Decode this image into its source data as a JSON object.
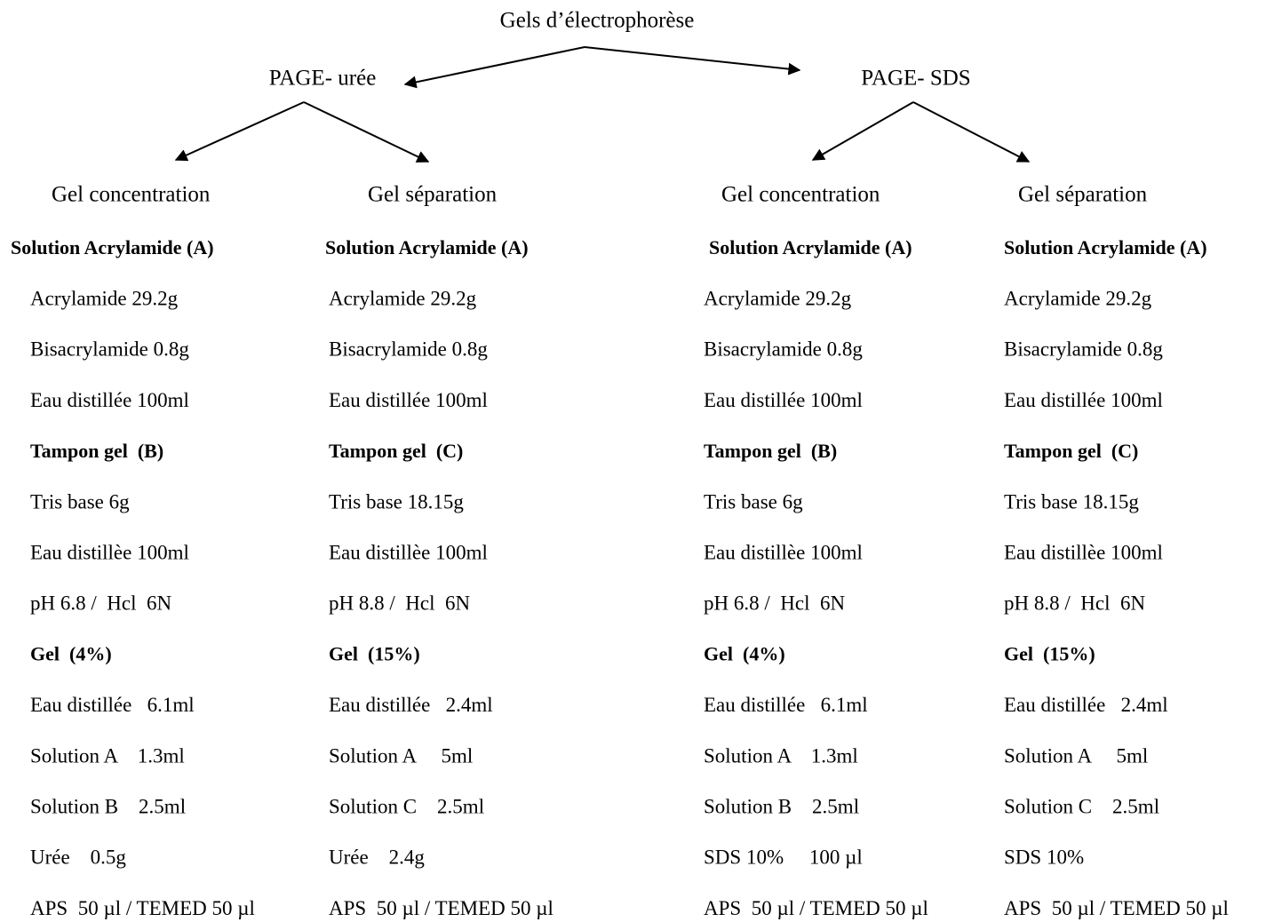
{
  "title": "Gels d’électrophorèse",
  "branches": [
    {
      "label": "PAGE- urée",
      "columns": [
        {
          "header": "Gel concentration",
          "items": [
            {
              "text": "Solution Acrylamide (A)",
              "bold": true
            },
            {
              "text": "Acrylamide 29.2g",
              "bold": false
            },
            {
              "text": "Bisacrylamide 0.8g",
              "bold": false
            },
            {
              "text": "Eau distillée 100ml",
              "bold": false
            },
            {
              "text": "Tampon gel  (B)",
              "bold": true
            },
            {
              "text": "Tris base 6g",
              "bold": false
            },
            {
              "text": "Eau distillèe 100ml",
              "bold": false
            },
            {
              "text": "pH 6.8 /  Hcl  6N",
              "bold": false
            },
            {
              "text": "Gel  (4%)",
              "bold": true
            },
            {
              "text": "Eau distillée   6.1ml",
              "bold": false
            },
            {
              "text": "Solution A    1.3ml",
              "bold": false
            },
            {
              "text": "Solution B    2.5ml",
              "bold": false
            },
            {
              "text": "Urée    0.5g",
              "bold": false
            },
            {
              "text": "APS  50 µl / TEMED 50 µl",
              "bold": false
            }
          ]
        },
        {
          "header": "Gel séparation",
          "items": [
            {
              "text": "Solution Acrylamide (A)",
              "bold": true
            },
            {
              "text": "Acrylamide 29.2g",
              "bold": false
            },
            {
              "text": "Bisacrylamide 0.8g",
              "bold": false
            },
            {
              "text": "Eau distillée 100ml",
              "bold": false
            },
            {
              "text": "Tampon gel  (C)",
              "bold": true
            },
            {
              "text": "Tris base 18.15g",
              "bold": false
            },
            {
              "text": "Eau distillèe 100ml",
              "bold": false
            },
            {
              "text": "pH 8.8 /  Hcl  6N",
              "bold": false
            },
            {
              "text": "Gel  (15%)",
              "bold": true
            },
            {
              "text": "Eau distillée   2.4ml",
              "bold": false
            },
            {
              "text": "Solution A     5ml",
              "bold": false
            },
            {
              "text": "Solution C    2.5ml",
              "bold": false
            },
            {
              "text": "Urée    2.4g",
              "bold": false
            },
            {
              "text": "APS  50 µl / TEMED 50 µl",
              "bold": false
            }
          ]
        }
      ]
    },
    {
      "label": "PAGE- SDS",
      "columns": [
        {
          "header": "Gel concentration",
          "items": [
            {
              "text": "Solution Acrylamide (A)",
              "bold": true
            },
            {
              "text": "Acrylamide 29.2g",
              "bold": false
            },
            {
              "text": "Bisacrylamide 0.8g",
              "bold": false
            },
            {
              "text": "Eau distillée 100ml",
              "bold": false
            },
            {
              "text": "Tampon gel  (B)",
              "bold": true
            },
            {
              "text": "Tris base 6g",
              "bold": false
            },
            {
              "text": "Eau distillèe 100ml",
              "bold": false
            },
            {
              "text": "pH 6.8 /  Hcl  6N",
              "bold": false
            },
            {
              "text": "Gel  (4%)",
              "bold": true
            },
            {
              "text": "Eau distillée   6.1ml",
              "bold": false
            },
            {
              "text": "Solution A    1.3ml",
              "bold": false
            },
            {
              "text": "Solution B    2.5ml",
              "bold": false
            },
            {
              "text": "SDS 10%     100 µl",
              "bold": false
            },
            {
              "text": "APS  50 µl / TEMED 50 µl",
              "bold": false
            }
          ]
        },
        {
          "header": "Gel séparation",
          "items": [
            {
              "text": "Solution Acrylamide (A)",
              "bold": true
            },
            {
              "text": "Acrylamide 29.2g",
              "bold": false
            },
            {
              "text": "Bisacrylamide 0.8g",
              "bold": false
            },
            {
              "text": "Eau distillée 100ml",
              "bold": false
            },
            {
              "text": "Tampon gel  (C)",
              "bold": true
            },
            {
              "text": "Tris base 18.15g",
              "bold": false
            },
            {
              "text": "Eau distillèe 100ml",
              "bold": false
            },
            {
              "text": "pH 8.8 /  Hcl  6N",
              "bold": false
            },
            {
              "text": "Gel  (15%)",
              "bold": true
            },
            {
              "text": "Eau distillée   2.4ml",
              "bold": false
            },
            {
              "text": "Solution A     5ml",
              "bold": false
            },
            {
              "text": "Solution C    2.5ml",
              "bold": false
            },
            {
              "text": "SDS 10%",
              "bold": false
            },
            {
              "text": "APS  50 µl / TEMED 50 µl",
              "bold": false
            }
          ]
        }
      ]
    }
  ]
}
